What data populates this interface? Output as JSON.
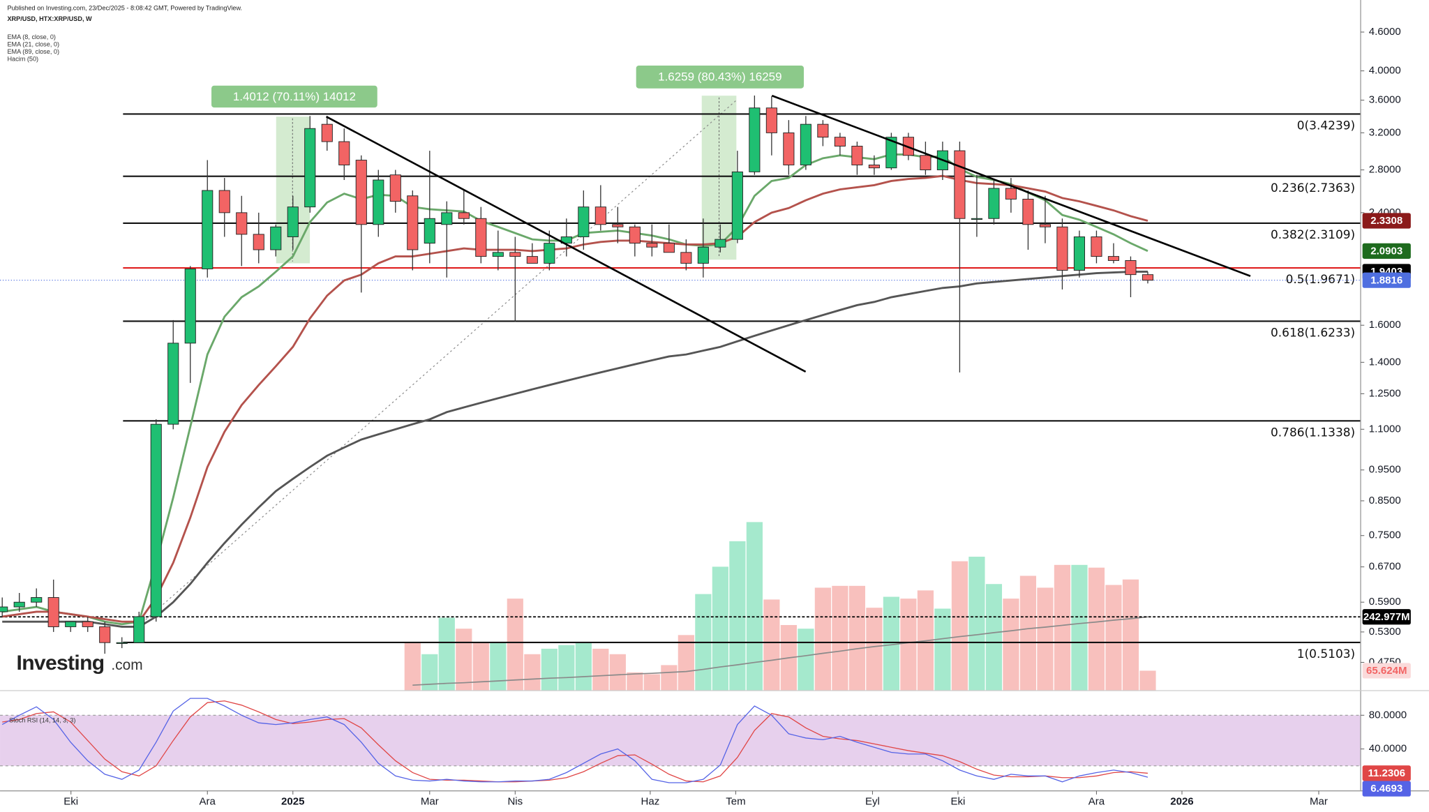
{
  "chart_data": {
    "type": "candlestick",
    "header": {
      "published": "Published on Investing.com, 23/Dec/2025 - 8:08:42 GMT, Powered by TradingView.",
      "symbol": "XRP/USD, HTX:XRP/USD, W"
    },
    "watermark": "Investing",
    "watermark_suffix": ".com",
    "log_y": true,
    "xlim": [
      -0.13,
      79.45
    ],
    "xticks": [
      {
        "value": 4.02,
        "label": "Eki"
      },
      {
        "value": 12.0,
        "label": "Ara"
      },
      {
        "value": 17.0,
        "label": "2025"
      },
      {
        "value": 25.0,
        "label": "Mar"
      },
      {
        "value": 30.0,
        "label": "Nis"
      },
      {
        "value": 37.9,
        "label": "Haz"
      },
      {
        "value": 42.9,
        "label": "Tem"
      },
      {
        "value": 50.9,
        "label": "Eyl"
      },
      {
        "value": 55.9,
        "label": "Eki"
      },
      {
        "value": 64.0,
        "label": "Ara"
      },
      {
        "value": 69.0,
        "label": "2026"
      },
      {
        "value": 77.0,
        "label": "Mar"
      }
    ],
    "ylim": [
      0.429,
      4.71
    ],
    "yticks": [
      {
        "value": 4.6,
        "label": "4.6000"
      },
      {
        "value": 4.0,
        "label": "4.0000"
      },
      {
        "value": 3.6,
        "label": "3.6000"
      },
      {
        "value": 3.2,
        "label": "3.2000"
      },
      {
        "value": 2.8,
        "label": "2.8000"
      },
      {
        "value": 2.4,
        "label": "2.4000"
      },
      {
        "value": 1.6,
        "label": "1.6000"
      },
      {
        "value": 1.4,
        "label": "1.4000"
      },
      {
        "value": 1.25,
        "label": "1.2500"
      },
      {
        "value": 1.1,
        "label": "1.1000"
      },
      {
        "value": 0.95,
        "label": "0.9500"
      },
      {
        "value": 0.85,
        "label": "0.8500"
      },
      {
        "value": 0.75,
        "label": "0.7500"
      },
      {
        "value": 0.67,
        "label": "0.6700"
      },
      {
        "value": 0.59,
        "label": "0.5900"
      },
      {
        "value": 0.53,
        "label": "0.5300"
      },
      {
        "value": 0.475,
        "label": "0.4750"
      }
    ],
    "candles": {
      "up_color": "#1fbf72",
      "down_color": "#f26464",
      "last_color": "#4f6fe0",
      "open": [
        0.57,
        0.58,
        0.59,
        0.6,
        0.54,
        0.55,
        0.54,
        0.51,
        0.51,
        0.56,
        1.12,
        1.5,
        1.96,
        2.6,
        2.4,
        2.22,
        2.1,
        2.2,
        2.45,
        3.3,
        3.1,
        2.9,
        2.3,
        2.75,
        2.55,
        2.15,
        2.3,
        2.4,
        2.35,
        2.05,
        2.08,
        2.05,
        2.0,
        2.15,
        2.2,
        2.45,
        2.3,
        2.28,
        2.15,
        2.15,
        2.08,
        2.0,
        2.12,
        2.18,
        2.78,
        3.5,
        3.2,
        2.85,
        3.3,
        3.15,
        3.05,
        2.85,
        2.82,
        3.15,
        2.95,
        2.8,
        3.0,
        2.35,
        2.35,
        2.62,
        2.52,
        2.3,
        2.28,
        1.95,
        2.2,
        2.05,
        2.02,
        1.92
      ],
      "high": [
        0.6,
        0.61,
        0.62,
        0.64,
        0.55,
        0.56,
        0.55,
        0.52,
        0.57,
        1.14,
        1.63,
        1.98,
        2.9,
        2.72,
        2.55,
        2.4,
        2.3,
        2.55,
        3.4,
        3.4,
        3.25,
        2.95,
        2.8,
        2.8,
        2.6,
        3.0,
        2.5,
        2.6,
        2.45,
        2.25,
        2.2,
        2.15,
        2.25,
        2.35,
        2.6,
        2.65,
        2.45,
        2.3,
        2.3,
        2.3,
        2.18,
        2.35,
        2.3,
        3.0,
        3.66,
        3.65,
        3.35,
        3.4,
        3.35,
        3.2,
        3.1,
        2.95,
        3.2,
        3.2,
        3.1,
        3.1,
        3.1,
        2.75,
        2.7,
        2.72,
        2.6,
        2.55,
        2.35,
        2.25,
        2.25,
        2.15,
        2.05,
        1.94
      ],
      "low": [
        0.56,
        0.57,
        0.58,
        0.53,
        0.53,
        0.53,
        0.49,
        0.5,
        0.51,
        0.55,
        1.1,
        1.3,
        1.9,
        2.2,
        1.98,
        2.0,
        2.05,
        2.1,
        2.4,
        3.0,
        2.7,
        1.8,
        2.2,
        2.4,
        1.95,
        2.0,
        1.9,
        2.3,
        2.0,
        1.95,
        1.62,
        2.0,
        1.95,
        2.05,
        2.1,
        2.25,
        2.15,
        2.05,
        2.05,
        2.1,
        1.95,
        1.9,
        2.08,
        2.15,
        2.75,
        2.95,
        2.75,
        2.8,
        3.05,
        2.95,
        2.75,
        2.75,
        2.8,
        2.9,
        2.75,
        2.7,
        1.35,
        2.2,
        2.3,
        2.4,
        2.1,
        2.15,
        1.82,
        1.9,
        2.0,
        2.0,
        1.77,
        1.86
      ],
      "close": [
        0.58,
        0.59,
        0.6,
        0.54,
        0.55,
        0.54,
        0.51,
        0.51,
        0.56,
        1.12,
        1.5,
        1.96,
        2.6,
        2.4,
        2.22,
        2.1,
        2.28,
        2.45,
        3.25,
        3.1,
        2.85,
        2.3,
        2.7,
        2.5,
        2.1,
        2.35,
        2.4,
        2.35,
        2.05,
        2.08,
        2.05,
        2.0,
        2.15,
        2.2,
        2.45,
        2.3,
        2.28,
        2.15,
        2.12,
        2.08,
        2.0,
        2.12,
        2.18,
        2.78,
        3.5,
        3.2,
        2.85,
        3.3,
        3.15,
        3.05,
        2.85,
        2.82,
        3.15,
        2.95,
        2.8,
        3.0,
        2.35,
        2.35,
        2.62,
        2.52,
        2.3,
        2.28,
        1.95,
        2.2,
        2.05,
        2.02,
        1.92,
        1.8816
      ]
    },
    "ema": [
      {
        "name": "EMA (8, close, 0)",
        "color": "#6aa86a",
        "badge_color": "#1e6b1e",
        "values": [
          0.57,
          0.575,
          0.58,
          0.57,
          0.565,
          0.56,
          0.55,
          0.545,
          0.55,
          0.68,
          0.86,
          1.11,
          1.44,
          1.65,
          1.77,
          1.84,
          1.94,
          2.05,
          2.32,
          2.49,
          2.57,
          2.52,
          2.56,
          2.55,
          2.45,
          2.43,
          2.42,
          2.41,
          2.33,
          2.28,
          2.23,
          2.18,
          2.17,
          2.17,
          2.23,
          2.24,
          2.25,
          2.23,
          2.21,
          2.18,
          2.14,
          2.13,
          2.14,
          2.28,
          2.55,
          2.69,
          2.72,
          2.85,
          2.92,
          2.95,
          2.93,
          2.91,
          2.96,
          2.96,
          2.93,
          2.94,
          2.81,
          2.73,
          2.7,
          2.66,
          2.58,
          2.51,
          2.38,
          2.34,
          2.28,
          2.22,
          2.15,
          2.0903
        ]
      },
      {
        "name": "EMA (21, close, 0)",
        "color": "#b4524c",
        "badge_color": "#8b1a1a",
        "values": [
          0.56,
          0.565,
          0.57,
          0.57,
          0.565,
          0.56,
          0.555,
          0.55,
          0.55,
          0.6,
          0.68,
          0.8,
          0.96,
          1.09,
          1.2,
          1.29,
          1.38,
          1.48,
          1.64,
          1.78,
          1.88,
          1.92,
          2.0,
          2.05,
          2.05,
          2.07,
          2.09,
          2.11,
          2.1,
          2.1,
          2.1,
          2.09,
          2.1,
          2.11,
          2.14,
          2.16,
          2.17,
          2.17,
          2.16,
          2.15,
          2.14,
          2.14,
          2.15,
          2.2,
          2.32,
          2.4,
          2.44,
          2.51,
          2.57,
          2.61,
          2.63,
          2.65,
          2.69,
          2.71,
          2.72,
          2.74,
          2.7,
          2.67,
          2.66,
          2.65,
          2.62,
          2.59,
          2.53,
          2.5,
          2.46,
          2.42,
          2.37,
          2.3308
        ]
      },
      {
        "name": "EMA (89, close, 0)",
        "color": "#555555",
        "badge_color": "#000000",
        "values": [
          0.55,
          0.55,
          0.55,
          0.55,
          0.55,
          0.55,
          0.545,
          0.54,
          0.54,
          0.56,
          0.59,
          0.63,
          0.68,
          0.73,
          0.78,
          0.83,
          0.88,
          0.92,
          0.96,
          1.0,
          1.03,
          1.06,
          1.08,
          1.1,
          1.12,
          1.14,
          1.17,
          1.19,
          1.21,
          1.23,
          1.25,
          1.27,
          1.29,
          1.31,
          1.33,
          1.35,
          1.37,
          1.39,
          1.41,
          1.43,
          1.44,
          1.46,
          1.48,
          1.51,
          1.54,
          1.57,
          1.6,
          1.63,
          1.66,
          1.69,
          1.72,
          1.74,
          1.77,
          1.79,
          1.81,
          1.83,
          1.84,
          1.86,
          1.87,
          1.88,
          1.89,
          1.9,
          1.91,
          1.92,
          1.93,
          1.935,
          1.94,
          1.9403
        ]
      }
    ],
    "volume": {
      "name": "Hacim (50)",
      "lim": [
        0,
        2190
      ],
      "up_color": "#8fe3c0",
      "down_color": "#f6b0ac",
      "ma_color": "#8a8a8a",
      "values": [
        null,
        null,
        null,
        null,
        null,
        null,
        null,
        null,
        null,
        null,
        null,
        null,
        null,
        null,
        null,
        null,
        null,
        null,
        null,
        null,
        null,
        null,
        null,
        null,
        159,
        120,
        240,
        204,
        159,
        159,
        303,
        120,
        138,
        150,
        159,
        138,
        120,
        60,
        54,
        84,
        183,
        318,
        408,
        492,
        555,
        300,
        216,
        204,
        339,
        345,
        345,
        273,
        309,
        303,
        330,
        270,
        426,
        441,
        351,
        303,
        378,
        339,
        414,
        414,
        405,
        348,
        366,
        65.624
      ],
      "ma_values": [
        null,
        null,
        null,
        null,
        null,
        null,
        null,
        null,
        null,
        null,
        null,
        null,
        null,
        null,
        null,
        null,
        null,
        null,
        null,
        null,
        null,
        null,
        null,
        null,
        18,
        21,
        24,
        26,
        29,
        32,
        35,
        38,
        41,
        43,
        46,
        49,
        52,
        55,
        57,
        60,
        63,
        70,
        78,
        85,
        93,
        100,
        108,
        115,
        123,
        130,
        138,
        145,
        151,
        158,
        164,
        171,
        178,
        184,
        191,
        197,
        204,
        209,
        215,
        221,
        226,
        232,
        237,
        242.977
      ],
      "last_label": "65.624M",
      "ma_last_label": "242.977M"
    },
    "fib": {
      "levels": [
        {
          "value": 3.4239,
          "label": "0(3.4239)",
          "color": "#111111"
        },
        {
          "value": 2.7363,
          "label": "0.236(2.7363)",
          "color": "#111111"
        },
        {
          "value": 2.3109,
          "label": "0.382(2.3109)",
          "color": "#111111"
        },
        {
          "value": 1.9671,
          "label": "0.5(1.9671)",
          "color": "#e02020"
        },
        {
          "value": 1.6233,
          "label": "0.618(1.6233)",
          "color": "#111111"
        },
        {
          "value": 1.1338,
          "label": "0.786(1.1338)",
          "color": "#111111"
        },
        {
          "value": 0.5103,
          "label": "1(0.5103)",
          "color": "#111111"
        }
      ]
    },
    "measures": [
      {
        "label": "1.4012 (70.11%) 14012",
        "color": "#8cc98a"
      },
      {
        "label": "1.6259 (80.43%) 16259",
        "color": "#8cc98a"
      }
    ],
    "stoch": {
      "title": "Stoch RSI (14, 14, 3, 3)",
      "ylim": [
        -9.7,
        109.2
      ],
      "yticks": [
        {
          "value": 80,
          "label": "80.0000"
        },
        {
          "value": 40,
          "label": "40.0000"
        }
      ],
      "band": [
        20,
        80
      ],
      "band_color": "#e3c8ea",
      "k": {
        "color": "#5563e6",
        "values": [
          69,
          80,
          90,
          75,
          48,
          26,
          10,
          4,
          15,
          48,
          85,
          100,
          100,
          91,
          80,
          71,
          69,
          71,
          75,
          78,
          69,
          48,
          23,
          8,
          3,
          2,
          4,
          2,
          1,
          1,
          2,
          2,
          4,
          12,
          23,
          34,
          40,
          26,
          4,
          0,
          0,
          4,
          21,
          69,
          91,
          80,
          58,
          53,
          51,
          55,
          48,
          42,
          36,
          34,
          34,
          26,
          15,
          8,
          4,
          10,
          8,
          8,
          1,
          8,
          12,
          15,
          12,
          6.4693
        ]
      },
      "d": {
        "color": "#e04646",
        "values": [
          72,
          75,
          82,
          84,
          72,
          50,
          28,
          13,
          8,
          20,
          50,
          78,
          95,
          97,
          92,
          84,
          75,
          70,
          72,
          75,
          76,
          65,
          45,
          26,
          12,
          4,
          3,
          3,
          2,
          1,
          1,
          2,
          3,
          6,
          13,
          23,
          32,
          33,
          22,
          10,
          2,
          1,
          8,
          30,
          62,
          82,
          78,
          65,
          55,
          52,
          50,
          46,
          42,
          38,
          35,
          32,
          25,
          16,
          9,
          7,
          7,
          8,
          6,
          6,
          8,
          12,
          13,
          11.2306
        ]
      }
    }
  }
}
